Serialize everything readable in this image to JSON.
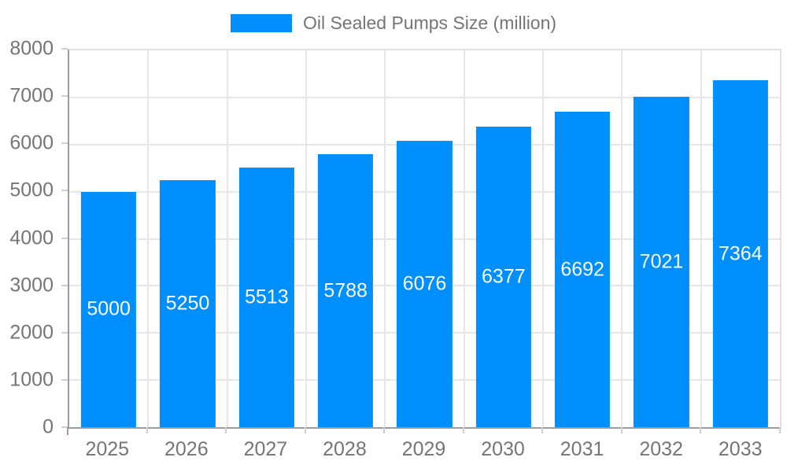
{
  "legend": {
    "label": "Oil Sealed Pumps Size (million)"
  },
  "chart_data": {
    "type": "bar",
    "title": "Oil Sealed Pumps Size (million)",
    "categories": [
      "2025",
      "2026",
      "2027",
      "2028",
      "2029",
      "2030",
      "2031",
      "2032",
      "2033"
    ],
    "series": [
      {
        "name": "Oil Sealed Pumps Size (million)",
        "values": [
          5000,
          5250,
          5513,
          5788,
          6076,
          6377,
          6692,
          7021,
          7364
        ]
      }
    ],
    "xlabel": "",
    "ylabel": "",
    "ylim": [
      0,
      8000
    ],
    "yticks": [
      0,
      1000,
      2000,
      3000,
      4000,
      5000,
      6000,
      7000,
      8000
    ],
    "grid": true,
    "legend_position": "top",
    "data_labels": "inside-center",
    "colors": {
      "bar": "#008FFB",
      "axis_label_text": "#757575",
      "bar_label_text": "#ffffff",
      "gridline": "#e6e6e6",
      "frame": "#e0e0e0",
      "axis_line": "#9b9b9b",
      "tick": "#cfcfcf",
      "background": "#ffffff"
    }
  }
}
